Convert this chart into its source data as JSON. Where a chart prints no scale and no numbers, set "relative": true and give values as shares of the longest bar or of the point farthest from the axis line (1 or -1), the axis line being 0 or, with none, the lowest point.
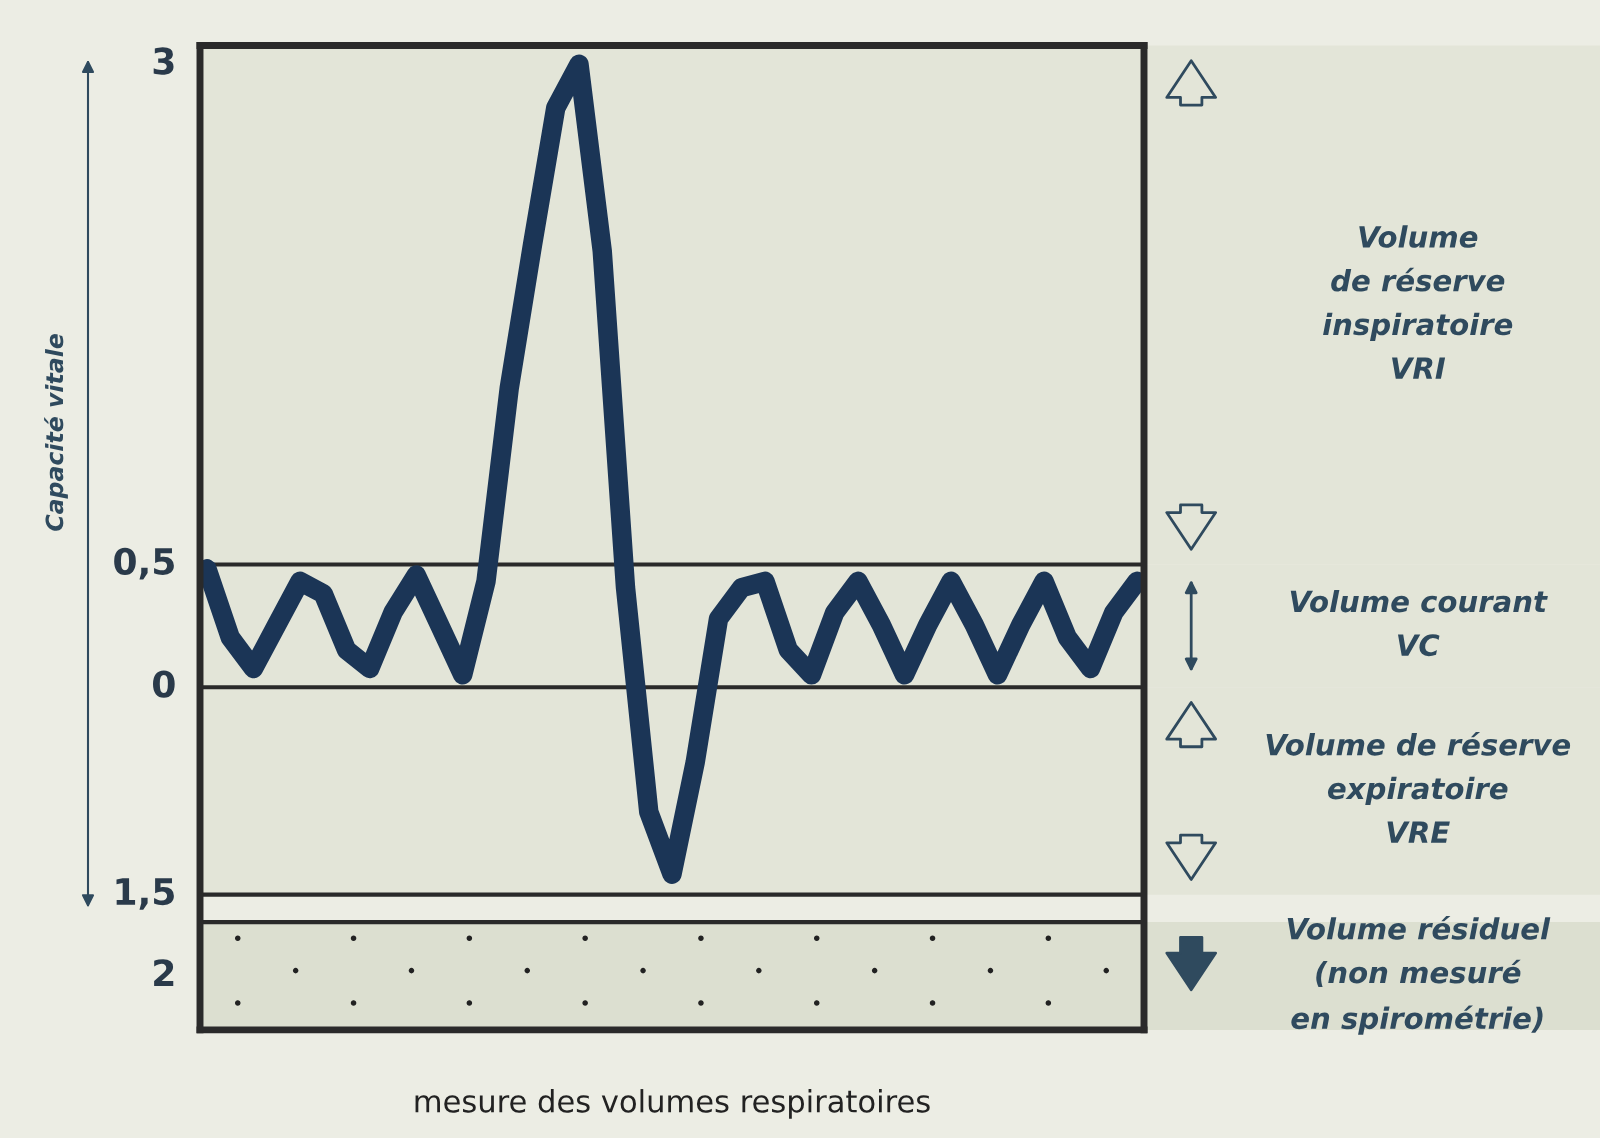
{
  "chart_data": {
    "type": "line",
    "relative": true,
    "categories": [
      null,
      null,
      null,
      null,
      null,
      null,
      null,
      null,
      null,
      null,
      null,
      null,
      null,
      null,
      null,
      null,
      null,
      null,
      null,
      null,
      null,
      null,
      null,
      null,
      null,
      null,
      null,
      null,
      null,
      null,
      null,
      null,
      null,
      null,
      null,
      null,
      null,
      null,
      null,
      null,
      null
    ],
    "series": [
      {
        "color": "#1b3556",
        "values": [
          0.19,
          0.08,
          0.03,
          0.1,
          0.17,
          0.15,
          0.06,
          0.03,
          0.12,
          0.18,
          0.1,
          0.02,
          0.17,
          0.48,
          0.71,
          0.93,
          1.0,
          0.7,
          0.16,
          -0.2,
          -0.3,
          -0.12,
          0.11,
          0.16,
          0.17,
          0.06,
          0.02,
          0.12,
          0.17,
          0.1,
          0.02,
          0.1,
          0.17,
          0.1,
          0.02,
          0.1,
          0.17,
          0.08,
          0.03,
          0.12,
          0.17
        ]
      }
    ],
    "ref_lines": [
      {
        "axis": "y",
        "value": 0.197,
        "color": "#2a2a2a"
      },
      {
        "axis": "y",
        "value": 0,
        "color": "#2a2a2a"
      },
      {
        "axis": "y",
        "value": -0.333,
        "color": "#2a2a2a"
      },
      {
        "axis": "y",
        "value": -0.377,
        "color": "#2a2a2a"
      }
    ],
    "bands": [
      {
        "axis": "y",
        "from": 0.197,
        "to": 1.03,
        "label": "Volume\nde réserve\ninspiratoire\nVRI",
        "color": "#e3e5d8"
      },
      {
        "axis": "y",
        "from": 0,
        "to": 0.197,
        "label": "Volume courant\nVC",
        "color": "#e3e5d8"
      },
      {
        "axis": "y",
        "from": -0.333,
        "to": 0,
        "label": "Volume de réserve\nexpiratoire\nVRE",
        "color": "#e3e5d8"
      },
      {
        "axis": "y",
        "from": -0.55,
        "to": -0.377,
        "label": "Volume résiduel\n(non mesuré\nen spirométrie)",
        "color": "#dcdfd0"
      }
    ],
    "annotations": [
      "mesure des volumes respiratoires",
      "Capacité vitale",
      "3",
      "0,5",
      "0",
      "1,5",
      "2"
    ],
    "line_style": "solid"
  }
}
